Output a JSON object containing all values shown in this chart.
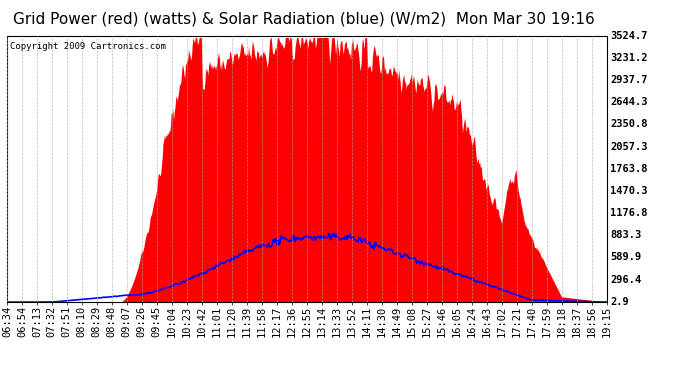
{
  "title": "Grid Power (red) (watts) & Solar Radiation (blue) (W/m2)  Mon Mar 30 19:16",
  "copyright_text": "Copyright 2009 Cartronics.com",
  "background_color": "#ffffff",
  "plot_bg_color": "#ffffff",
  "grid_color": "#aaaaaa",
  "red_fill_color": "#ff0000",
  "blue_line_color": "#0000ff",
  "y_ticks": [
    2.9,
    296.4,
    589.9,
    883.3,
    1176.8,
    1470.3,
    1763.8,
    2057.3,
    2350.8,
    2644.3,
    2937.7,
    3231.2,
    3524.7
  ],
  "x_tick_labels": [
    "06:34",
    "06:54",
    "07:13",
    "07:32",
    "07:51",
    "08:10",
    "08:29",
    "08:48",
    "09:07",
    "09:26",
    "09:45",
    "10:04",
    "10:23",
    "10:42",
    "11:01",
    "11:20",
    "11:39",
    "11:58",
    "12:17",
    "12:36",
    "12:55",
    "13:14",
    "13:33",
    "13:52",
    "14:11",
    "14:30",
    "14:49",
    "15:08",
    "15:27",
    "15:46",
    "16:05",
    "16:24",
    "16:43",
    "17:02",
    "17:21",
    "17:40",
    "17:59",
    "18:18",
    "18:37",
    "18:56",
    "19:15"
  ],
  "ylim_min": 2.9,
  "ylim_max": 3524.7,
  "title_fontsize": 11,
  "copyright_fontsize": 6.5,
  "tick_fontsize": 7.5,
  "ytick_fontsize": 7.5,
  "red_peak": 3500,
  "blue_peak": 900,
  "n_points": 800
}
